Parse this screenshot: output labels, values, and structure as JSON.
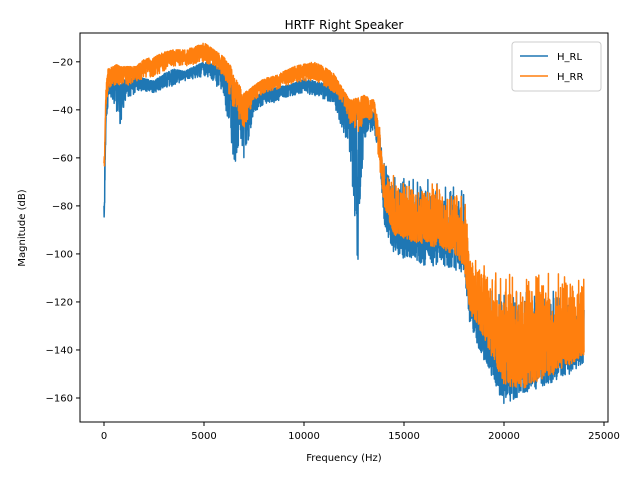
{
  "chart_data": {
    "type": "line",
    "title": "HRTF Right Speaker",
    "xlabel": "Frequency (Hz)",
    "ylabel": "Magnitude (dB)",
    "xlim": [
      -1200,
      25200
    ],
    "ylim": [
      -170,
      -8
    ],
    "xticks": [
      0,
      5000,
      10000,
      15000,
      20000,
      25000
    ],
    "yticks": [
      -160,
      -140,
      -120,
      -100,
      -80,
      -60,
      -40,
      -20
    ],
    "grid": false,
    "legend_position": "top-right",
    "series": [
      {
        "name": "H_RL",
        "color": "#1f77b4",
        "upper": [
          [
            0,
            -80
          ],
          [
            40,
            -62
          ],
          [
            100,
            -42
          ],
          [
            200,
            -30
          ],
          [
            400,
            -28
          ],
          [
            600,
            -26
          ],
          [
            800,
            -27
          ],
          [
            1200,
            -28
          ],
          [
            1600,
            -26
          ],
          [
            2000,
            -27
          ],
          [
            2500,
            -28
          ],
          [
            3000,
            -25
          ],
          [
            3500,
            -23
          ],
          [
            4000,
            -24
          ],
          [
            4500,
            -22
          ],
          [
            5000,
            -20
          ],
          [
            5500,
            -21
          ],
          [
            6000,
            -23
          ],
          [
            6300,
            -27
          ],
          [
            6500,
            -33
          ],
          [
            6800,
            -38
          ],
          [
            7000,
            -39
          ],
          [
            7500,
            -35
          ],
          [
            8000,
            -32
          ],
          [
            8500,
            -31
          ],
          [
            9000,
            -30
          ],
          [
            9500,
            -29
          ],
          [
            10000,
            -27
          ],
          [
            10500,
            -28
          ],
          [
            11000,
            -29
          ],
          [
            11500,
            -30
          ],
          [
            12000,
            -33
          ],
          [
            12300,
            -38
          ],
          [
            12700,
            -40
          ],
          [
            13000,
            -40
          ],
          [
            13500,
            -41
          ],
          [
            13800,
            -50
          ],
          [
            14000,
            -60
          ],
          [
            14500,
            -65
          ],
          [
            15000,
            -67
          ],
          [
            16000,
            -68
          ],
          [
            17000,
            -69
          ],
          [
            18000,
            -71
          ],
          [
            18300,
            -108
          ],
          [
            19000,
            -112
          ],
          [
            20000,
            -113
          ],
          [
            21000,
            -114
          ],
          [
            22000,
            -114
          ],
          [
            23000,
            -115
          ],
          [
            24000,
            -116
          ]
        ],
        "lower": [
          [
            0,
            -102
          ],
          [
            40,
            -75
          ],
          [
            100,
            -45
          ],
          [
            200,
            -38
          ],
          [
            400,
            -35
          ],
          [
            600,
            -40
          ],
          [
            800,
            -46
          ],
          [
            1200,
            -35
          ],
          [
            1600,
            -33
          ],
          [
            2000,
            -32
          ],
          [
            2500,
            -33
          ],
          [
            3000,
            -31
          ],
          [
            3500,
            -30
          ],
          [
            4000,
            -28
          ],
          [
            4500,
            -27
          ],
          [
            5000,
            -26
          ],
          [
            5500,
            -29
          ],
          [
            6000,
            -35
          ],
          [
            6300,
            -50
          ],
          [
            6500,
            -67
          ],
          [
            6800,
            -50
          ],
          [
            7000,
            -62
          ],
          [
            7500,
            -41
          ],
          [
            8000,
            -38
          ],
          [
            8500,
            -37
          ],
          [
            9000,
            -35
          ],
          [
            9500,
            -34
          ],
          [
            10000,
            -33
          ],
          [
            10500,
            -34
          ],
          [
            11000,
            -36
          ],
          [
            11500,
            -38
          ],
          [
            12000,
            -50
          ],
          [
            12300,
            -58
          ],
          [
            12700,
            -106
          ],
          [
            13000,
            -52
          ],
          [
            13500,
            -48
          ],
          [
            13800,
            -62
          ],
          [
            14000,
            -88
          ],
          [
            14500,
            -100
          ],
          [
            15000,
            -102
          ],
          [
            16000,
            -105
          ],
          [
            17000,
            -105
          ],
          [
            18000,
            -108
          ],
          [
            18300,
            -130
          ],
          [
            19000,
            -145
          ],
          [
            20000,
            -163
          ],
          [
            21000,
            -158
          ],
          [
            22000,
            -155
          ],
          [
            23000,
            -152
          ],
          [
            24000,
            -145
          ]
        ]
      },
      {
        "name": "H_RR",
        "color": "#ff7f0e",
        "upper": [
          [
            0,
            -62
          ],
          [
            40,
            -50
          ],
          [
            100,
            -30
          ],
          [
            200,
            -23
          ],
          [
            400,
            -22
          ],
          [
            600,
            -21
          ],
          [
            800,
            -22
          ],
          [
            1200,
            -22
          ],
          [
            1600,
            -22
          ],
          [
            2000,
            -19
          ],
          [
            2500,
            -18
          ],
          [
            3000,
            -16
          ],
          [
            3500,
            -15
          ],
          [
            4000,
            -15
          ],
          [
            4500,
            -14
          ],
          [
            5000,
            -12
          ],
          [
            5500,
            -15
          ],
          [
            6000,
            -18
          ],
          [
            6300,
            -21
          ],
          [
            6500,
            -26
          ],
          [
            6800,
            -30
          ],
          [
            7000,
            -33
          ],
          [
            7500,
            -30
          ],
          [
            8000,
            -27
          ],
          [
            8500,
            -26
          ],
          [
            9000,
            -24
          ],
          [
            9500,
            -22
          ],
          [
            10000,
            -21
          ],
          [
            10500,
            -20
          ],
          [
            11000,
            -22
          ],
          [
            11500,
            -25
          ],
          [
            12000,
            -32
          ],
          [
            12300,
            -36
          ],
          [
            12700,
            -35
          ],
          [
            13000,
            -34
          ],
          [
            13500,
            -36
          ],
          [
            13800,
            -48
          ],
          [
            14000,
            -62
          ],
          [
            14500,
            -67
          ],
          [
            15000,
            -69
          ],
          [
            16000,
            -70
          ],
          [
            17000,
            -71
          ],
          [
            18000,
            -72
          ],
          [
            18300,
            -98
          ],
          [
            19000,
            -103
          ],
          [
            20000,
            -106
          ],
          [
            21000,
            -106
          ],
          [
            22000,
            -107
          ],
          [
            23000,
            -108
          ],
          [
            24000,
            -108
          ]
        ],
        "lower": [
          [
            0,
            -80
          ],
          [
            40,
            -58
          ],
          [
            100,
            -38
          ],
          [
            200,
            -33
          ],
          [
            400,
            -31
          ],
          [
            600,
            -30
          ],
          [
            800,
            -30
          ],
          [
            1200,
            -30
          ],
          [
            1600,
            -28
          ],
          [
            2000,
            -27
          ],
          [
            2500,
            -26
          ],
          [
            3000,
            -24
          ],
          [
            3500,
            -22
          ],
          [
            4000,
            -22
          ],
          [
            4500,
            -21
          ],
          [
            5000,
            -20
          ],
          [
            5500,
            -22
          ],
          [
            6000,
            -26
          ],
          [
            6300,
            -35
          ],
          [
            6500,
            -40
          ],
          [
            6800,
            -45
          ],
          [
            7000,
            -48
          ],
          [
            7500,
            -36
          ],
          [
            8000,
            -33
          ],
          [
            8500,
            -32
          ],
          [
            9000,
            -30
          ],
          [
            9500,
            -29
          ],
          [
            10000,
            -28
          ],
          [
            10500,
            -28
          ],
          [
            11000,
            -30
          ],
          [
            11500,
            -33
          ],
          [
            12000,
            -38
          ],
          [
            12300,
            -46
          ],
          [
            12700,
            -50
          ],
          [
            13000,
            -45
          ],
          [
            13500,
            -44
          ],
          [
            13800,
            -65
          ],
          [
            14000,
            -80
          ],
          [
            14500,
            -92
          ],
          [
            15000,
            -94
          ],
          [
            16000,
            -96
          ],
          [
            17000,
            -98
          ],
          [
            18000,
            -105
          ],
          [
            18300,
            -125
          ],
          [
            19000,
            -135
          ],
          [
            20000,
            -155
          ],
          [
            21000,
            -156
          ],
          [
            22000,
            -152
          ],
          [
            23000,
            -148
          ],
          [
            24000,
            -142
          ]
        ]
      }
    ]
  }
}
